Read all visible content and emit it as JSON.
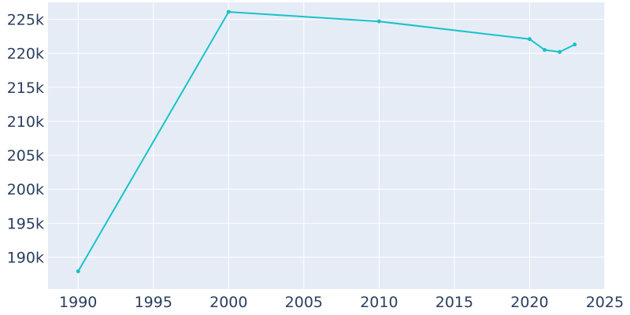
{
  "chart_data": {
    "type": "line",
    "title": "",
    "xlabel": "",
    "ylabel": "",
    "x": [
      1990,
      2000,
      2010,
      2020,
      2021,
      2022,
      2023
    ],
    "series": [
      {
        "values": [
          187900,
          226100,
          224700,
          222100,
          220500,
          220200,
          221300
        ]
      }
    ],
    "xlim": [
      1988,
      2025
    ],
    "ylim": [
      185300,
      227500
    ],
    "x_ticks": [
      1990,
      1995,
      2000,
      2005,
      2010,
      2015,
      2020,
      2025
    ],
    "x_tick_labels": [
      "1990",
      "1995",
      "2000",
      "2005",
      "2010",
      "2015",
      "2020",
      "2025"
    ],
    "y_ticks": [
      190000,
      195000,
      200000,
      205000,
      210000,
      215000,
      220000,
      225000
    ],
    "y_tick_labels": [
      "190k",
      "195k",
      "200k",
      "205k",
      "210k",
      "215k",
      "220k",
      "225k"
    ],
    "grid": true,
    "legend": "none",
    "colors": {
      "line": "#17c3c9",
      "plot_background": "#e5ecf6",
      "grid": "#ffffff",
      "tick_text": "#2a3f5f"
    }
  }
}
